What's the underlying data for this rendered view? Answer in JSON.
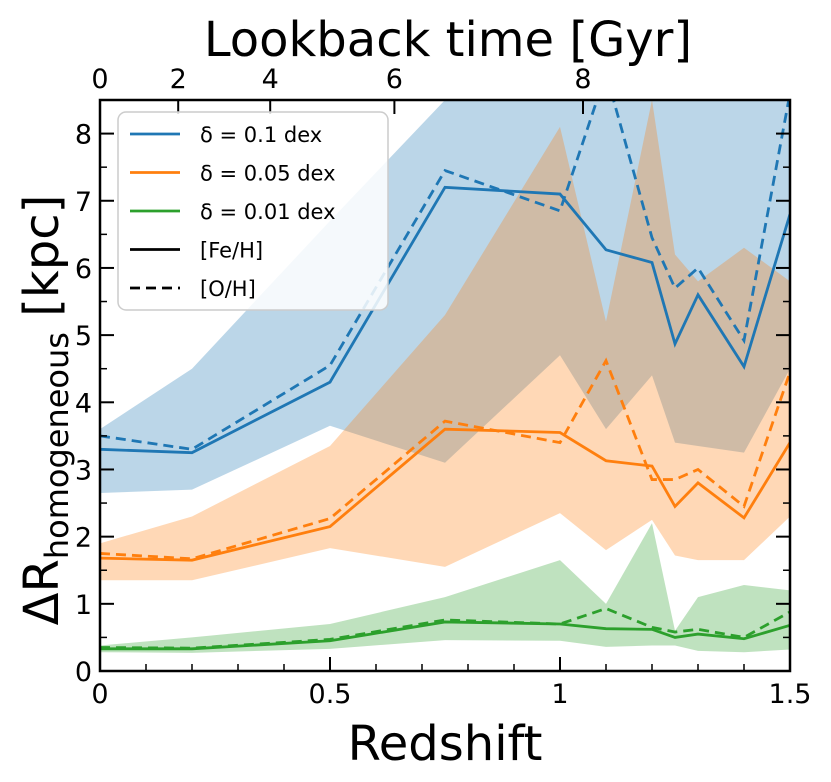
{
  "chart_data": {
    "type": "line",
    "title": "",
    "xlabel": "Redshift",
    "ylabel_main": "ΔR",
    "ylabel_sub": "homogeneous",
    "ylabel_unit": " [kpc]",
    "top_xlabel": "Lookback time [Gyr]",
    "xlim": [
      0,
      1.5
    ],
    "ylim": [
      0,
      8.5
    ],
    "x": [
      0,
      0.2,
      0.5,
      0.75,
      1.0,
      1.1,
      1.2,
      1.25,
      1.3,
      1.4,
      1.5
    ],
    "x_ticks": [
      {
        "value": 0,
        "label": "0"
      },
      {
        "value": 0.5,
        "label": "0.5"
      },
      {
        "value": 1.0,
        "label": "1"
      },
      {
        "value": 1.5,
        "label": "1.5"
      }
    ],
    "y_ticks": [
      {
        "value": 0,
        "label": "0"
      },
      {
        "value": 1,
        "label": "1"
      },
      {
        "value": 2,
        "label": "2"
      },
      {
        "value": 3,
        "label": "3"
      },
      {
        "value": 4,
        "label": "4"
      },
      {
        "value": 5,
        "label": "5"
      },
      {
        "value": 6,
        "label": "6"
      },
      {
        "value": 7,
        "label": "7"
      },
      {
        "value": 8,
        "label": "8"
      }
    ],
    "top_ticks": [
      {
        "z": 0.0,
        "label": "0"
      },
      {
        "z": 0.17,
        "label": "2"
      },
      {
        "z": 0.37,
        "label": "4"
      },
      {
        "z": 0.64,
        "label": "6"
      },
      {
        "z": 1.05,
        "label": "8"
      }
    ],
    "series": [
      {
        "name": "δ = 0.1 dex",
        "color": "#1f77b4",
        "fe_h": [
          3.3,
          3.25,
          4.3,
          7.2,
          7.1,
          6.27,
          6.08,
          4.87,
          5.6,
          4.53,
          6.8
        ],
        "o_h": [
          3.5,
          3.3,
          4.55,
          7.45,
          6.85,
          8.9,
          6.45,
          5.7,
          6.0,
          4.92,
          8.6
        ],
        "band_upper": [
          3.6,
          4.5,
          6.7,
          8.5,
          8.5,
          8.5,
          8.5,
          8.5,
          8.5,
          8.5,
          8.5
        ],
        "band_lower": [
          2.65,
          2.7,
          3.65,
          3.1,
          4.7,
          3.6,
          4.4,
          3.4,
          3.35,
          3.25,
          4.5
        ]
      },
      {
        "name": "δ = 0.05 dex",
        "color": "#ff7f0e",
        "fe_h": [
          1.68,
          1.65,
          2.15,
          3.6,
          3.55,
          3.13,
          3.05,
          2.45,
          2.8,
          2.28,
          3.4
        ],
        "o_h": [
          1.75,
          1.67,
          2.27,
          3.72,
          3.4,
          4.62,
          2.85,
          2.85,
          3.0,
          2.45,
          4.45
        ],
        "band_upper": [
          1.9,
          2.3,
          3.35,
          5.3,
          8.1,
          5.2,
          8.5,
          6.2,
          5.8,
          6.3,
          5.8
        ],
        "band_lower": [
          1.35,
          1.35,
          1.83,
          1.55,
          2.35,
          1.8,
          2.25,
          1.72,
          1.65,
          1.65,
          2.3
        ]
      },
      {
        "name": "δ = 0.01 dex",
        "color": "#2ca02c",
        "fe_h": [
          0.33,
          0.33,
          0.45,
          0.73,
          0.7,
          0.63,
          0.62,
          0.5,
          0.55,
          0.48,
          0.68
        ],
        "o_h": [
          0.35,
          0.34,
          0.47,
          0.76,
          0.7,
          0.93,
          0.65,
          0.58,
          0.62,
          0.5,
          0.88
        ],
        "band_upper": [
          0.38,
          0.5,
          0.7,
          1.1,
          1.65,
          1.0,
          2.2,
          0.6,
          1.1,
          1.28,
          1.2
        ],
        "band_lower": [
          0.28,
          0.27,
          0.33,
          0.46,
          0.45,
          0.36,
          0.38,
          0.38,
          0.3,
          0.28,
          0.32
        ]
      }
    ],
    "legend": {
      "position": "top-left",
      "entries": [
        {
          "label": "δ = 0.1 dex",
          "color": "#1f77b4",
          "style": "solid"
        },
        {
          "label": "δ = 0.05 dex",
          "color": "#ff7f0e",
          "style": "solid"
        },
        {
          "label": "δ = 0.01 dex",
          "color": "#2ca02c",
          "style": "solid"
        },
        {
          "label": "[Fe/H]",
          "color": "#000000",
          "style": "solid"
        },
        {
          "label": "[O/H]",
          "color": "#000000",
          "style": "dashed"
        }
      ]
    }
  }
}
